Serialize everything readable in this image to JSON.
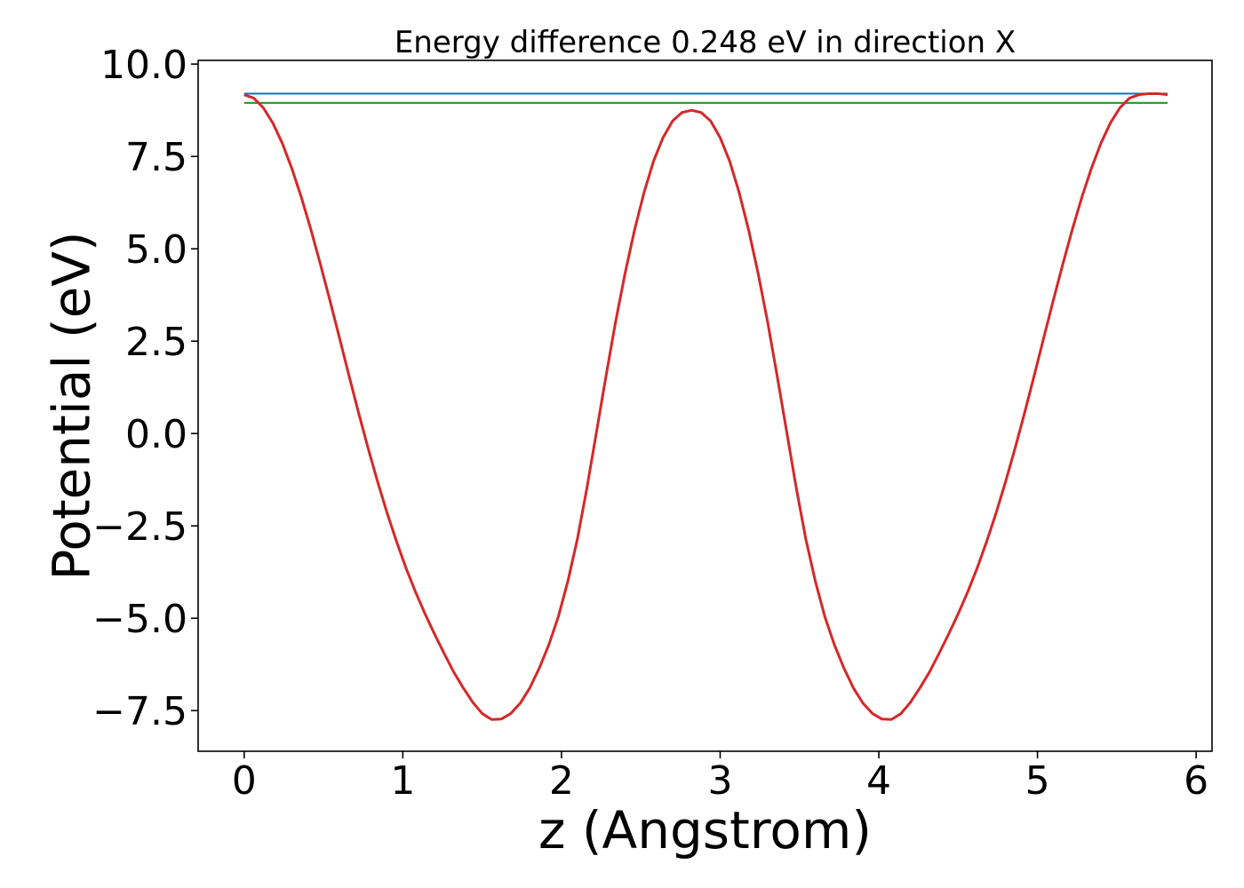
{
  "chart_data": {
    "type": "line",
    "title": "Energy difference 0.248 eV in direction X",
    "xlabel": "z (Angstrom)",
    "ylabel": "Potential (eV)",
    "xlim": [
      -0.29,
      6.1
    ],
    "ylim": [
      -8.6,
      10.1
    ],
    "x_ticks": [
      0,
      1,
      2,
      3,
      4,
      5,
      6
    ],
    "x_tick_labels": [
      "0",
      "1",
      "2",
      "3",
      "4",
      "5",
      "6"
    ],
    "y_ticks": [
      -7.5,
      -5.0,
      -2.5,
      0.0,
      2.5,
      5.0,
      7.5,
      10.0
    ],
    "y_tick_labels": [
      "−7.5",
      "−5.0",
      "−2.5",
      "0.0",
      "2.5",
      "5.0",
      "7.5",
      "10.0"
    ],
    "grid": false,
    "series": [
      {
        "color": "#1f77b4",
        "x": [
          0.0,
          5.82
        ],
        "y": [
          9.2,
          9.2
        ]
      },
      {
        "color": "#2ca02c",
        "x": [
          0.0,
          5.82
        ],
        "y": [
          8.95,
          8.95
        ]
      },
      {
        "color": "#d62728",
        "x": [
          0.0,
          0.06,
          0.12,
          0.18,
          0.24,
          0.3,
          0.36,
          0.42,
          0.48,
          0.54,
          0.6,
          0.66,
          0.72,
          0.78,
          0.84,
          0.9,
          0.96,
          1.02,
          1.08,
          1.14,
          1.2,
          1.26,
          1.32,
          1.38,
          1.44,
          1.5,
          1.56,
          1.62,
          1.68,
          1.74,
          1.8,
          1.86,
          1.92,
          1.98,
          2.04,
          2.1,
          2.16,
          2.22,
          2.28,
          2.34,
          2.4,
          2.46,
          2.52,
          2.58,
          2.64,
          2.7,
          2.76,
          2.82,
          2.88,
          2.94,
          3.0,
          3.06,
          3.12,
          3.18,
          3.24,
          3.3,
          3.36,
          3.42,
          3.48,
          3.54,
          3.6,
          3.66,
          3.72,
          3.78,
          3.84,
          3.9,
          3.96,
          4.02,
          4.08,
          4.14,
          4.2,
          4.26,
          4.32,
          4.38,
          4.44,
          4.5,
          4.56,
          4.62,
          4.68,
          4.74,
          4.8,
          4.86,
          4.92,
          4.98,
          5.04,
          5.1,
          5.16,
          5.22,
          5.28,
          5.34,
          5.4,
          5.46,
          5.52,
          5.58,
          5.64,
          5.7,
          5.76,
          5.82
        ],
        "y": [
          9.17,
          9.08,
          8.82,
          8.41,
          7.86,
          7.18,
          6.4,
          5.53,
          4.59,
          3.61,
          2.6,
          1.58,
          0.58,
          -0.38,
          -1.29,
          -2.14,
          -2.92,
          -3.64,
          -4.29,
          -4.88,
          -5.43,
          -5.95,
          -6.45,
          -6.88,
          -7.27,
          -7.58,
          -7.74,
          -7.73,
          -7.58,
          -7.3,
          -6.89,
          -6.35,
          -5.72,
          -4.96,
          -4.0,
          -2.86,
          -1.48,
          0.03,
          1.54,
          3.0,
          4.32,
          5.5,
          6.52,
          7.37,
          8.01,
          8.46,
          8.69,
          8.75,
          8.69,
          8.46,
          8.01,
          7.37,
          6.52,
          5.5,
          4.32,
          3.0,
          1.54,
          0.03,
          -1.48,
          -2.86,
          -4.0,
          -4.96,
          -5.72,
          -6.35,
          -6.89,
          -7.3,
          -7.58,
          -7.73,
          -7.74,
          -7.58,
          -7.27,
          -6.88,
          -6.45,
          -5.95,
          -5.43,
          -4.88,
          -4.29,
          -3.64,
          -2.92,
          -2.14,
          -1.29,
          -0.38,
          0.58,
          1.58,
          2.6,
          3.61,
          4.59,
          5.53,
          6.4,
          7.18,
          7.86,
          8.41,
          8.82,
          9.08,
          9.17,
          9.2,
          9.2,
          9.17
        ]
      }
    ]
  }
}
